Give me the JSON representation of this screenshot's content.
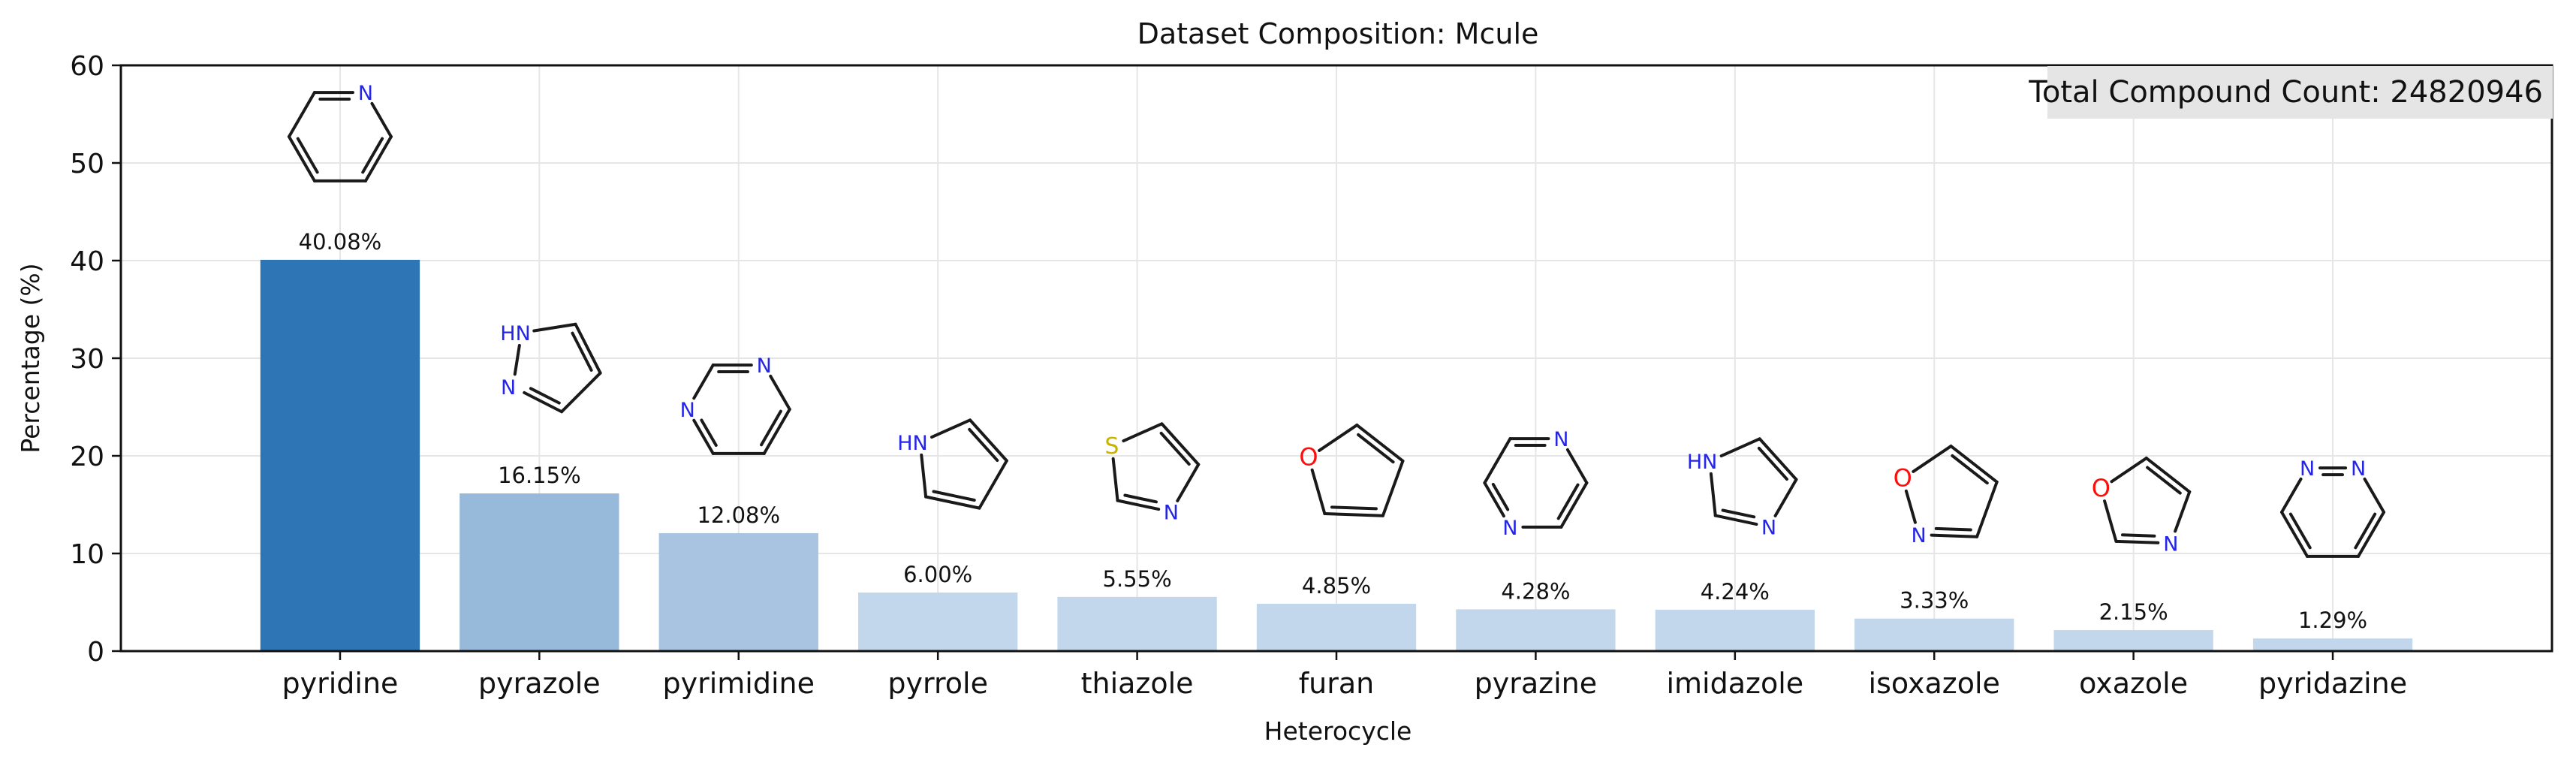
{
  "chart_data": {
    "type": "bar",
    "title": "Dataset Composition: Mcule",
    "xlabel": "Heterocycle",
    "ylabel": "Percentage (%)",
    "ylim": [
      0,
      60
    ],
    "yticks": [
      "0",
      "10",
      "20",
      "30",
      "40",
      "50",
      "60"
    ],
    "grid": true,
    "categories": [
      "pyridine",
      "pyrazole",
      "pyrimidine",
      "pyrrole",
      "thiazole",
      "furan",
      "pyrazine",
      "imidazole",
      "isoxazole",
      "oxazole",
      "pyridazine"
    ],
    "values": [
      40.08,
      16.15,
      12.08,
      6.0,
      5.55,
      4.85,
      4.28,
      4.24,
      3.33,
      2.15,
      1.29
    ],
    "value_labels": [
      "40.08%",
      "16.15%",
      "12.08%",
      "6.00%",
      "5.55%",
      "4.85%",
      "4.28%",
      "4.24%",
      "3.33%",
      "2.15%",
      "1.29%"
    ],
    "bar_colors": [
      "#2e75b6",
      "#97b9da",
      "#a8c4e0",
      "#c2d7eb",
      "#c2d7eb",
      "#c2d7eb",
      "#c2d7eb",
      "#c2d7eb",
      "#c2d7eb",
      "#c2d7eb",
      "#c2d7eb"
    ],
    "annotation": "Total Compound Count: 24820946",
    "structure_atom_labels": {
      "pyridine": [
        "N"
      ],
      "pyrazole": [
        "HN",
        "N"
      ],
      "pyrimidine": [
        "N",
        "N"
      ],
      "pyrrole": [
        "HN"
      ],
      "thiazole": [
        "S",
        "N"
      ],
      "furan": [
        "O"
      ],
      "pyrazine": [
        "N",
        "N"
      ],
      "imidazole": [
        "HN",
        "N"
      ],
      "isoxazole": [
        "O",
        "N"
      ],
      "oxazole": [
        "O",
        "N"
      ],
      "pyridazine": [
        "N",
        "N"
      ]
    }
  },
  "colors": {
    "axis": "#111111",
    "grid": "#e6e6e6",
    "badge_bg": "#e5e5e5",
    "bond": "#1a1a1a",
    "nitrogen": "#2525e6",
    "oxygen": "#ff0d0d",
    "sulfur": "#c8b400"
  }
}
